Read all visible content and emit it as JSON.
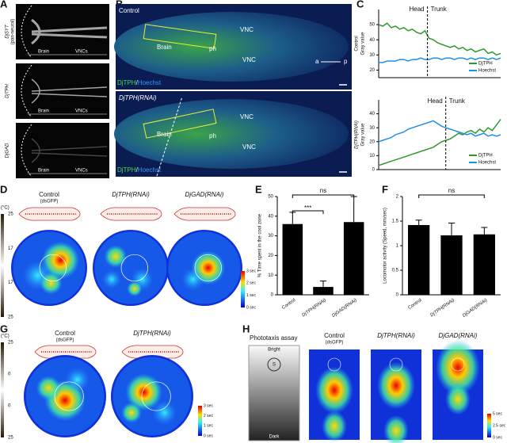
{
  "panel_labels": [
    "A",
    "B",
    "C",
    "D",
    "E",
    "F",
    "G",
    "H"
  ],
  "panel_a": {
    "rows": [
      {
        "label": "DjSYT",
        "sublabel": "(pan-neural)"
      },
      {
        "label": "DjTPH"
      },
      {
        "label": "DjGAD"
      }
    ],
    "brain": "Brain",
    "vncs": "VNCs"
  },
  "panel_b": {
    "control": "Control",
    "rnai": "DjTPH(RNAi)",
    "brain": "Brain",
    "vnc": "VNC",
    "ph": "ph",
    "stain_green": "DjTPH",
    "stain_sep": "/",
    "stain_blue": "Hoechst",
    "anterior": "a",
    "posterior": "p"
  },
  "chart_data": [
    {
      "type": "line",
      "ylabel": [
        "Control",
        "Gray value"
      ],
      "ylim": [
        15,
        60
      ],
      "yticks": [
        20,
        30,
        40,
        50
      ],
      "annotations": [
        "Head",
        "Trunk"
      ],
      "series": [
        {
          "name": "DjTPH",
          "color": "#2e9a2e",
          "values": [
            50,
            49,
            51,
            48,
            49,
            47,
            48,
            46,
            47,
            45,
            44,
            46,
            41,
            40,
            38,
            37,
            36,
            35,
            36,
            34,
            35,
            33,
            34,
            32,
            33,
            34,
            31,
            32,
            30,
            31
          ]
        },
        {
          "name": "Hoechst",
          "color": "#1e8fe6",
          "values": [
            25,
            25,
            26,
            26,
            26,
            27,
            27,
            26,
            27,
            27,
            28,
            27,
            27,
            28,
            28,
            27,
            28,
            28,
            27,
            28,
            28,
            27,
            28,
            27,
            28,
            28,
            27,
            28,
            27,
            28
          ]
        }
      ]
    },
    {
      "type": "line",
      "ylabel": [
        "DjTPH(RNAi)",
        "Gray value"
      ],
      "ylim": [
        0,
        50
      ],
      "yticks": [
        0,
        10,
        20,
        30,
        40
      ],
      "annotations": [
        "Head",
        "Trunk"
      ],
      "series": [
        {
          "name": "DjTPH",
          "color": "#2e9a2e",
          "values": [
            3,
            4,
            5,
            6,
            7,
            8,
            9,
            10,
            11,
            12,
            13,
            14,
            15,
            16,
            18,
            20,
            21,
            22,
            24,
            26,
            25,
            27,
            28,
            26,
            29,
            27,
            30,
            28,
            32,
            36
          ]
        },
        {
          "name": "Hoechst",
          "color": "#1e8fe6",
          "values": [
            20,
            21,
            22,
            23,
            25,
            26,
            27,
            29,
            30,
            31,
            32,
            33,
            34,
            35,
            33,
            31,
            30,
            29,
            28,
            27,
            26,
            25,
            26,
            24,
            25,
            26,
            24,
            25,
            24,
            25
          ]
        }
      ]
    },
    {
      "type": "bar",
      "ylabel": "% Time spent in the cool zone",
      "categories": [
        "Control",
        "DjTPH(RNAi)",
        "DjGAD(RNAi)"
      ],
      "values": [
        36,
        4,
        37
      ],
      "errors": [
        6,
        3,
        13
      ],
      "color": "#000000",
      "ylim": [
        0,
        50
      ],
      "yticks": [
        0,
        10,
        20,
        30,
        40,
        50
      ],
      "annotations": [
        "***",
        "ns"
      ]
    },
    {
      "type": "bar",
      "ylabel": "Locomotor activity (Speed, mm/sec)",
      "categories": [
        "Control",
        "DjTPH(RNAi)",
        "DjGAD(RNAi)"
      ],
      "values": [
        1.42,
        1.21,
        1.23
      ],
      "errors": [
        0.1,
        0.25,
        0.14
      ],
      "color": "#000000",
      "ylim": [
        0,
        2
      ],
      "yticks": [
        0,
        0.5,
        1,
        1.5,
        2
      ],
      "annotations": [
        "ns"
      ]
    }
  ],
  "panel_d": {
    "titles": [
      {
        "name": "Control",
        "sub": "(dsGFP)"
      },
      {
        "name": "DjTPH(RNAi)"
      },
      {
        "name": "DjGAD(RNAi)"
      }
    ],
    "unit": "(°C)",
    "scale_labels": [
      "25",
      "17",
      "17",
      "25"
    ],
    "colorbar": [
      "3 sec",
      "2 sec",
      "1 sec",
      "0 sec"
    ]
  },
  "panel_g": {
    "titles": [
      {
        "name": "Control",
        "sub": "(dsGFP)"
      },
      {
        "name": "DjTPH(RNAi)"
      }
    ],
    "unit": "(°C)",
    "scale_labels": [
      "25",
      "0",
      "0",
      "25"
    ],
    "colorbar": [
      "3 sec",
      "2 sec",
      "1 sec",
      "0 sec"
    ]
  },
  "panel_h": {
    "title": "Phototaxis assay",
    "bright": "Bright",
    "dark": "Dark",
    "start": "S",
    "titles": [
      {
        "name": "Control",
        "sub": "(dsGFP)"
      },
      {
        "name": "DjTPH(RNAi)"
      },
      {
        "name": "DjGAD(RNAi)"
      }
    ],
    "colorbar": [
      "5 sec",
      "2.5 sec",
      "0 sec"
    ]
  }
}
